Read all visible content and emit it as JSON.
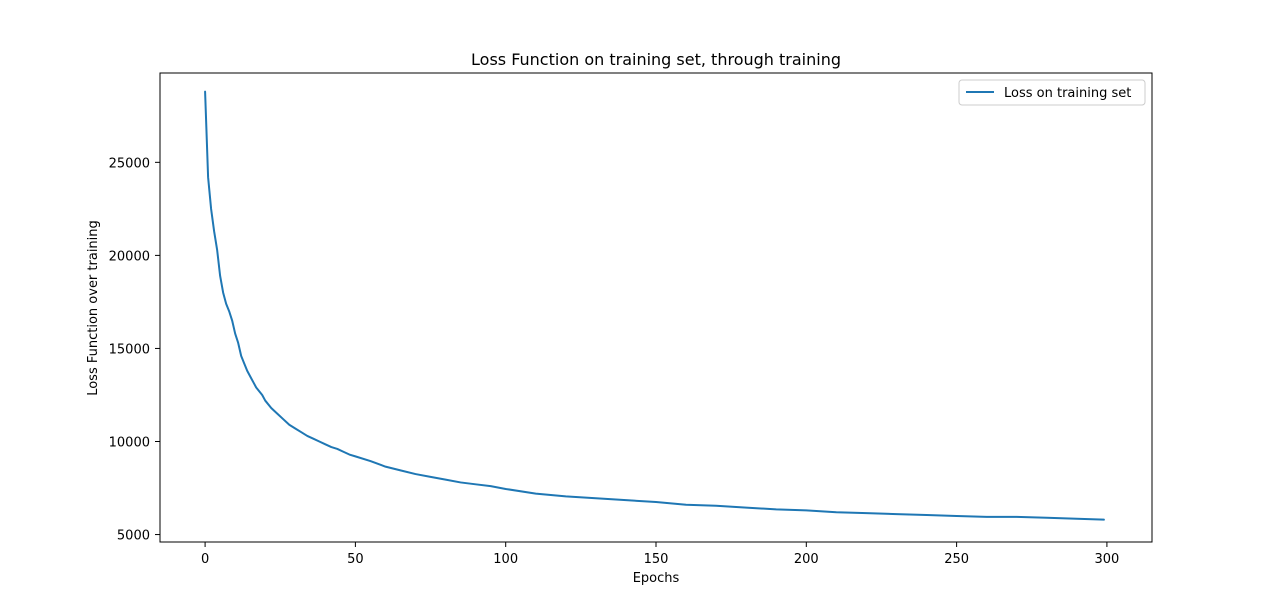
{
  "chart_data": {
    "type": "line",
    "title": "Loss Function on training set, through training",
    "xlabel": "Epochs",
    "ylabel": "Loss Function over training",
    "xlim": [
      -15,
      315
    ],
    "ylim": [
      4600,
      29800
    ],
    "xticks": [
      0,
      50,
      100,
      150,
      200,
      250,
      300
    ],
    "yticks": [
      5000,
      10000,
      15000,
      20000,
      25000
    ],
    "grid": false,
    "legend_position": "upper right",
    "series": [
      {
        "name": "Loss on training set",
        "color": "#1f77b4",
        "x": [
          0,
          1,
          2,
          3,
          4,
          5,
          6,
          7,
          8,
          9,
          10,
          11,
          12,
          13,
          14,
          15,
          16,
          17,
          18,
          19,
          20,
          22,
          24,
          26,
          28,
          30,
          32,
          34,
          36,
          38,
          40,
          42,
          44,
          46,
          48,
          50,
          55,
          60,
          65,
          70,
          75,
          80,
          85,
          90,
          95,
          100,
          110,
          120,
          130,
          140,
          150,
          160,
          170,
          180,
          190,
          200,
          210,
          220,
          230,
          240,
          250,
          260,
          270,
          280,
          290,
          299
        ],
        "values": [
          28800,
          24200,
          22500,
          21300,
          20300,
          18900,
          18000,
          17400,
          17000,
          16500,
          15800,
          15300,
          14600,
          14200,
          13800,
          13500,
          13200,
          12900,
          12700,
          12500,
          12200,
          11800,
          11500,
          11200,
          10900,
          10700,
          10500,
          10300,
          10150,
          10000,
          9850,
          9700,
          9600,
          9450,
          9300,
          9200,
          8950,
          8650,
          8450,
          8250,
          8100,
          7950,
          7800,
          7700,
          7600,
          7450,
          7200,
          7050,
          6950,
          6850,
          6750,
          6600,
          6550,
          6450,
          6350,
          6300,
          6200,
          6150,
          6100,
          6050,
          6000,
          5950,
          5950,
          5900,
          5850,
          5800
        ]
      }
    ]
  }
}
